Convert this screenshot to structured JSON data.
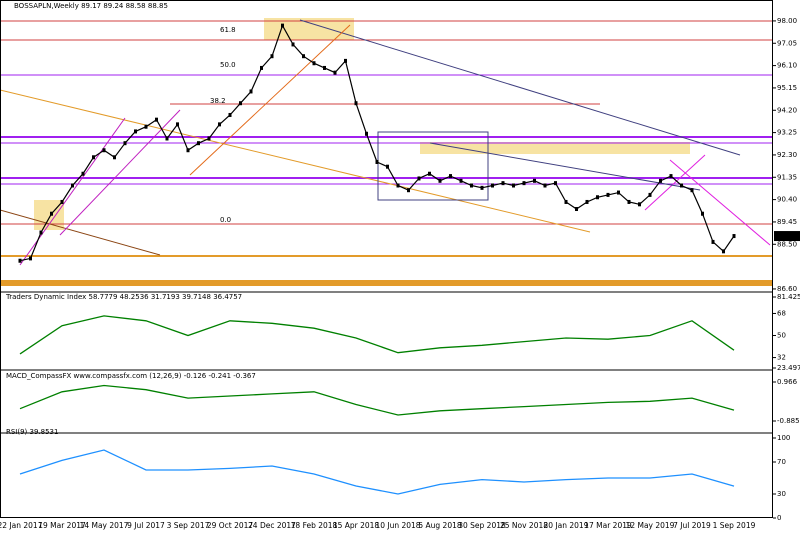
{
  "header": {
    "title": "BOSSAPLN,Weekly  89.17 89.24 88.58 88.85"
  },
  "chart_data": [
    {
      "type": "line",
      "color": "#000000",
      "categories": [
        "22 Jan 2017",
        null,
        null,
        null,
        "19 Mar 2017",
        null,
        null,
        null,
        "14 May 2017",
        null,
        null,
        null,
        "9 Jul 2017",
        null,
        null,
        null,
        "3 Sep 2017",
        null,
        null,
        null,
        "29 Oct 2017",
        null,
        null,
        null,
        "24 Dec 2017",
        null,
        null,
        null,
        "18 Feb 2018",
        null,
        null,
        null,
        "15 Apr 2018",
        null,
        null,
        null,
        "10 Jun 2018",
        null,
        null,
        null,
        "5 Aug 2018",
        null,
        null,
        null,
        "30 Sep 2018",
        null,
        null,
        null,
        "25 Nov 2018",
        null,
        null,
        null,
        "20 Jan 2019",
        null,
        null,
        null,
        "17 Mar 2019",
        null,
        null,
        null,
        "12 May 2019",
        null,
        null,
        null,
        "7 Jul 2019",
        null,
        null,
        null,
        "1 Sep 2019"
      ],
      "values": [
        87.8,
        87.9,
        89.0,
        89.8,
        90.3,
        91.0,
        91.5,
        92.2,
        92.5,
        92.2,
        92.8,
        93.3,
        93.5,
        93.8,
        93.0,
        93.6,
        92.5,
        92.8,
        93.0,
        93.6,
        94.0,
        94.5,
        95.0,
        96.0,
        96.5,
        97.8,
        97.0,
        96.5,
        96.2,
        96.0,
        95.8,
        96.3,
        94.5,
        93.2,
        92.0,
        91.8,
        91.0,
        90.8,
        91.3,
        91.5,
        91.2,
        91.4,
        91.2,
        91.0,
        90.9,
        91.0,
        91.1,
        91.0,
        91.1,
        91.2,
        91.0,
        91.1,
        90.3,
        90.0,
        90.3,
        90.5,
        90.6,
        90.7,
        90.3,
        90.2,
        90.6,
        91.2,
        91.4,
        91.0,
        90.8,
        89.8,
        88.6,
        88.2,
        88.85
      ],
      "last_label": "88.85",
      "ylim": [
        86.47,
        98.89
      ],
      "yticks": [
        {
          "value": 98,
          "label": "98.00"
        },
        {
          "value": 97.05,
          "label": "97.05"
        },
        {
          "value": 96.1,
          "label": "96.10"
        },
        {
          "value": 95.15,
          "label": "95.15"
        },
        {
          "value": 94.2,
          "label": "94.20"
        },
        {
          "value": 93.25,
          "label": "93.25"
        },
        {
          "value": 92.3,
          "label": "92.30"
        },
        {
          "value": 91.35,
          "label": "91.35"
        },
        {
          "value": 90.4,
          "label": "90.40"
        },
        {
          "value": 89.45,
          "label": "89.45"
        },
        {
          "value": 88.5,
          "label": "88.50"
        },
        {
          "value": 86.6,
          "label": "86.60"
        }
      ],
      "annotations": [
        "61.8",
        "50.0",
        "38.2",
        "0.0"
      ]
    },
    {
      "type": "line",
      "title": "Traders Dynamic Index 58.7779 48.2536 31.7193 39.7148 36.4757",
      "color": "#008000",
      "values": [
        35,
        58,
        66,
        62,
        50,
        62,
        60,
        56,
        48,
        36,
        40,
        42,
        45,
        48,
        47,
        50,
        62,
        38
      ],
      "ylim": [
        23.4971,
        81.4257
      ],
      "yticks": [
        81.4257,
        68,
        50,
        32,
        23.4971
      ]
    },
    {
      "type": "line",
      "title": "MACD_CompassFX www.compassfx.com (12,26,9) -0.126 -0.241 -0.367",
      "color": "#008000",
      "values": [
        -0.3,
        0.5,
        0.8,
        0.6,
        0.2,
        0.3,
        0.4,
        0.5,
        -0.1,
        -0.6,
        -0.4,
        -0.3,
        -0.2,
        -0.1,
        0.0,
        0.05,
        0.2,
        -0.367
      ],
      "ylim": [
        -0.885,
        0.966
      ],
      "yticks": [
        0.966,
        -0.885
      ]
    },
    {
      "type": "line",
      "title": "RSI(9) 39.8531",
      "color": "#1e90ff",
      "values": [
        55,
        72,
        85,
        60,
        60,
        62,
        65,
        55,
        40,
        30,
        42,
        48,
        45,
        48,
        50,
        50,
        55,
        39.8531
      ],
      "ylim": [
        0,
        100
      ],
      "yticks": [
        100,
        70,
        30,
        0
      ]
    }
  ]
}
